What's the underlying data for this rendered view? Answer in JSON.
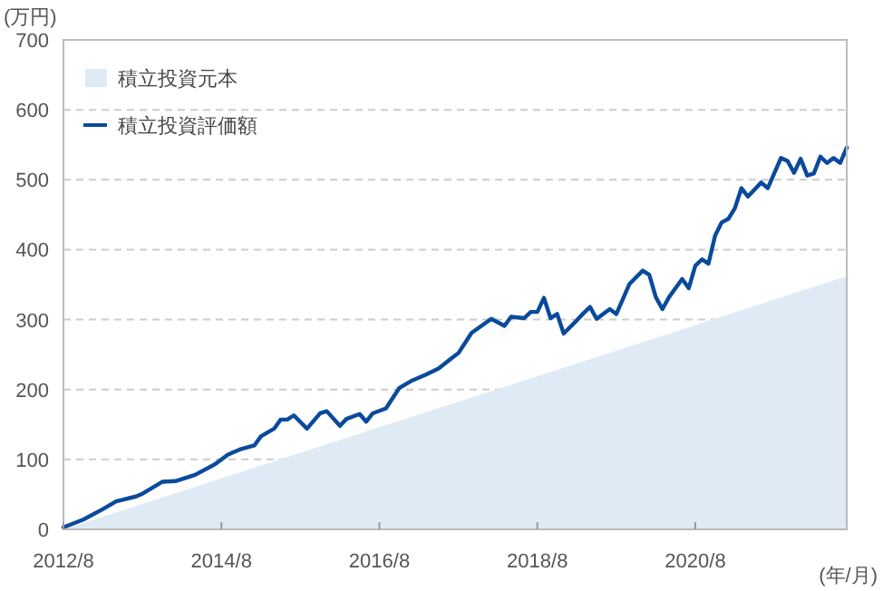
{
  "chart_data": {
    "type": "line",
    "ylabel": "(万円)",
    "xlabel": "(年/月)",
    "xlim": [
      "2012-08",
      "2022-07"
    ],
    "ylim": [
      0,
      700
    ],
    "xticks": [
      {
        "value": "2012-08",
        "label": "2012/8"
      },
      {
        "value": "2014-08",
        "label": "2014/8"
      },
      {
        "value": "2016-08",
        "label": "2016/8"
      },
      {
        "value": "2018-08",
        "label": "2018/8"
      },
      {
        "value": "2020-08",
        "label": "2020/8"
      }
    ],
    "yticks": [
      0,
      100,
      200,
      300,
      400,
      500,
      600,
      700
    ],
    "grid": "y",
    "legend": "top left",
    "marker": "none",
    "line_style": "solid",
    "series": [
      {
        "name": "積立投資元本",
        "type": "area",
        "color": "#dfeaf5",
        "x": [
          "2012-08",
          "2022-07"
        ],
        "values": [
          0,
          362
        ]
      },
      {
        "name": "積立投資評価額",
        "type": "line",
        "color": "#0a4a9c",
        "x": [
          "2012-08",
          "2012-11",
          "2013-02",
          "2013-04",
          "2013-07",
          "2013-08",
          "2013-11",
          "2014-01",
          "2014-04",
          "2014-07",
          "2014-09",
          "2014-11",
          "2015-01",
          "2015-02",
          "2015-04",
          "2015-05",
          "2015-06",
          "2015-07",
          "2015-09",
          "2015-11",
          "2015-12",
          "2016-02",
          "2016-03",
          "2016-05",
          "2016-06",
          "2016-07",
          "2016-09",
          "2016-11",
          "2017-01",
          "2017-03",
          "2017-05",
          "2017-07",
          "2017-08",
          "2017-10",
          "2018-01",
          "2018-03",
          "2018-04",
          "2018-06",
          "2018-07",
          "2018-08",
          "2018-09",
          "2018-10",
          "2018-11",
          "2018-12",
          "2019-02",
          "2019-03",
          "2019-04",
          "2019-05",
          "2019-07",
          "2019-08",
          "2019-10",
          "2019-12",
          "2020-01",
          "2020-02",
          "2020-03",
          "2020-04",
          "2020-06",
          "2020-07",
          "2020-08",
          "2020-09",
          "2020-10",
          "2020-11",
          "2020-12",
          "2021-01",
          "2021-02",
          "2021-03",
          "2021-04",
          "2021-06",
          "2021-07",
          "2021-09",
          "2021-10",
          "2021-11",
          "2021-12",
          "2022-01",
          "2022-02",
          "2022-03",
          "2022-04",
          "2022-05",
          "2022-06",
          "2022-07"
        ],
        "values": [
          3,
          14,
          29,
          40,
          47,
          51,
          68,
          69,
          78,
          93,
          107,
          115,
          120,
          133,
          144,
          157,
          157,
          163,
          144,
          166,
          169,
          148,
          158,
          165,
          154,
          166,
          173,
          202,
          213,
          221,
          230,
          245,
          252,
          281,
          301,
          291,
          304,
          302,
          311,
          311,
          331,
          302,
          308,
          280,
          299,
          309,
          318,
          301,
          315,
          308,
          351,
          370,
          364,
          332,
          315,
          332,
          358,
          345,
          377,
          386,
          380,
          420,
          439,
          444,
          459,
          488,
          476,
          496,
          488,
          531,
          527,
          510,
          530,
          506,
          509,
          533,
          524,
          531,
          524,
          546
        ]
      }
    ]
  }
}
